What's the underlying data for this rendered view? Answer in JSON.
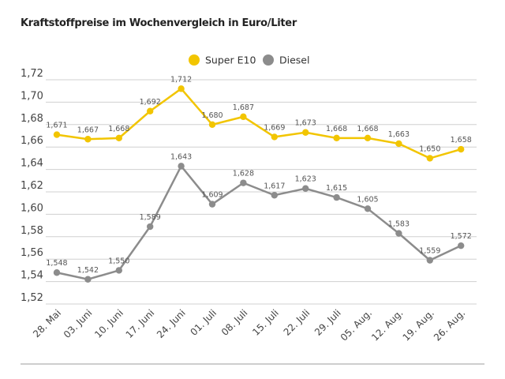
{
  "chart_data": {
    "type": "line",
    "title": "Kraftstoffpreise im Wochenvergleich in Euro/Liter",
    "categories": [
      "28. Mai",
      "03. Juni",
      "10. Juni",
      "17. Juni",
      "24. Juni",
      "01. Juli",
      "08. Juli",
      "15. Juli",
      "22. Juli",
      "29. Juli",
      "05. Aug.",
      "12. Aug.",
      "19. Aug.",
      "26. Aug."
    ],
    "series": [
      {
        "name": "Super E10",
        "color": "#f2c500",
        "values": [
          1.671,
          1.667,
          1.668,
          1.692,
          1.712,
          1.68,
          1.687,
          1.669,
          1.673,
          1.668,
          1.668,
          1.663,
          1.65,
          1.658
        ],
        "labels": [
          "1,671",
          "1,667",
          "1,668",
          "1,692",
          "1,712",
          "1,680",
          "1,687",
          "1,669",
          "1,673",
          "1,668",
          "1,668",
          "1,663",
          "1,650",
          "1,658"
        ]
      },
      {
        "name": "Diesel",
        "color": "#8c8c8c",
        "values": [
          1.548,
          1.542,
          1.55,
          1.589,
          1.643,
          1.609,
          1.628,
          1.617,
          1.623,
          1.615,
          1.605,
          1.583,
          1.559,
          1.572
        ],
        "labels": [
          "1,548",
          "1,542",
          "1,550",
          "1,589",
          "1,643",
          "1,609",
          "1,628",
          "1,617",
          "1,623",
          "1,615",
          "1,605",
          "1,583",
          "1,559",
          "1,572"
        ]
      }
    ],
    "yticks": [
      "1,52",
      "1,54",
      "1,56",
      "1,58",
      "1,60",
      "1,62",
      "1,64",
      "1,66",
      "1,68",
      "1,70",
      "1,72"
    ],
    "ylim": [
      1.52,
      1.72
    ],
    "xlabel": "",
    "ylabel": "",
    "grid": true,
    "legend": "top-center"
  }
}
